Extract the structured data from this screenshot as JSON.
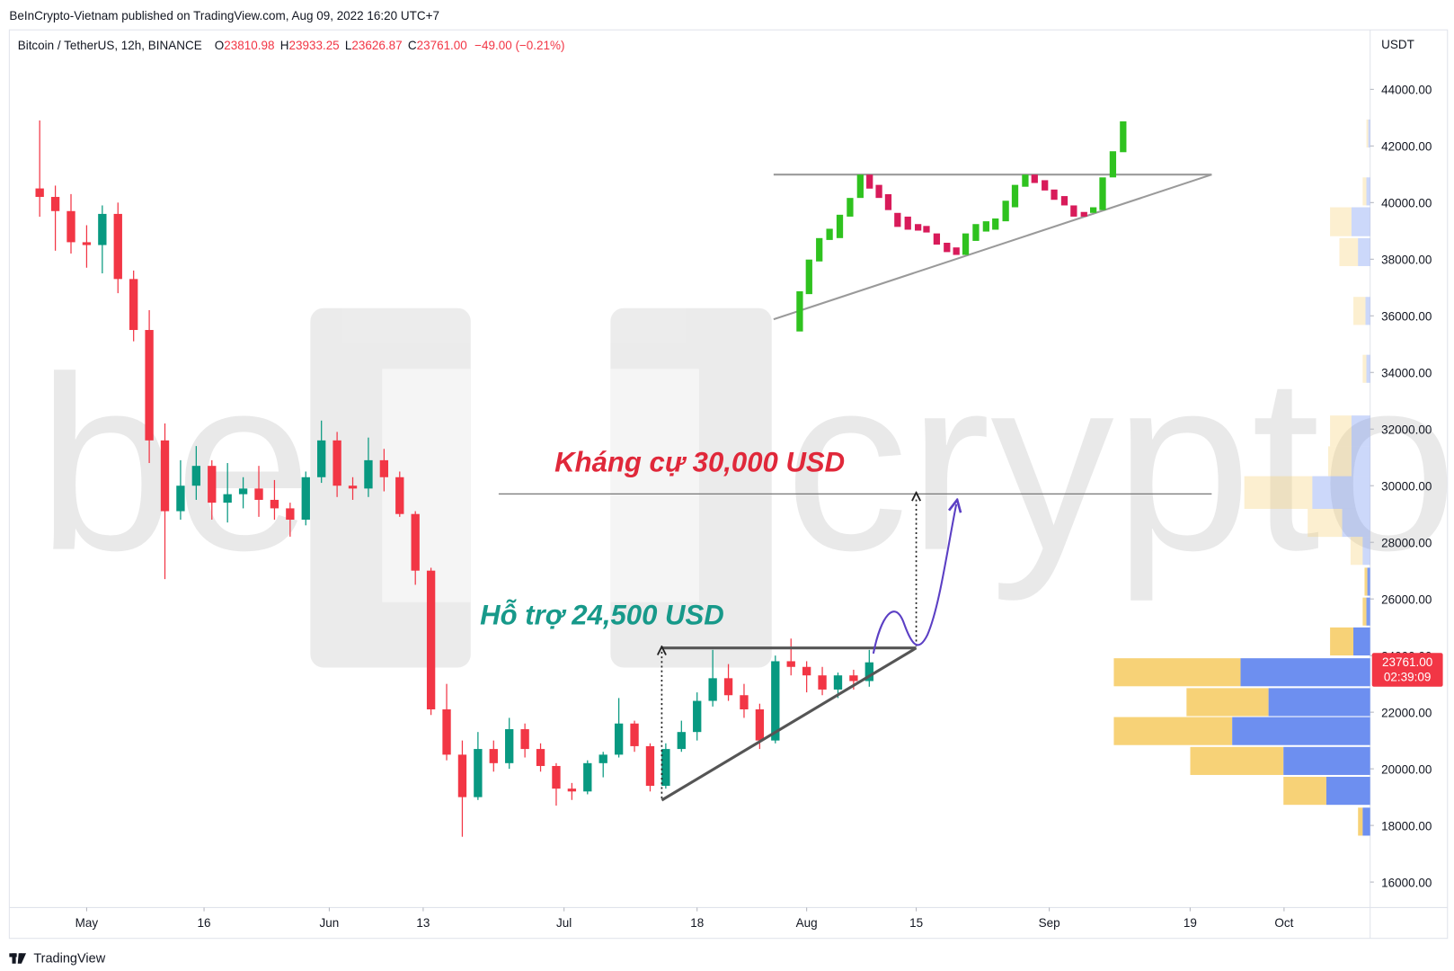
{
  "header": "BeInCrypto-Vietnam published on TradingView.com, Aug 09, 2022 16:20 UTC+7",
  "legend": {
    "symbol": "Bitcoin / TetherUS, 12h, BINANCE",
    "ohlc": [
      {
        "label": "O",
        "value": "23810.98"
      },
      {
        "label": "H",
        "value": "23933.25"
      },
      {
        "label": "L",
        "value": "23626.87"
      },
      {
        "label": "C",
        "value": "23761.00"
      }
    ],
    "change": "−49.00 (−0.21%)"
  },
  "price_tag": {
    "price": "23761.00",
    "countdown": "02:39:09"
  },
  "watermark": {
    "left": "be",
    "right": "crypto"
  },
  "footer": "TradingView",
  "chart_data": {
    "type": "candlestick",
    "y_axis_label": "USDT",
    "up_color": "#089981",
    "down_color": "#f23645",
    "xlim": [
      "04-21",
      "10-12"
    ],
    "ylim": [
      15100,
      46100
    ],
    "xticks": [
      {
        "value": "05-01",
        "label": "May"
      },
      {
        "value": "05-16",
        "label": "16"
      },
      {
        "value": "06-01",
        "label": "Jun"
      },
      {
        "value": "06-13",
        "label": "13"
      },
      {
        "value": "07-01",
        "label": "Jul"
      },
      {
        "value": "07-18",
        "label": "18"
      },
      {
        "value": "08-01",
        "label": "Aug"
      },
      {
        "value": "08-15",
        "label": "15"
      },
      {
        "value": "09-01",
        "label": "Sep"
      },
      {
        "value": "09-19",
        "label": "19"
      },
      {
        "value": "10-01",
        "label": "Oct"
      }
    ],
    "yticks": [
      {
        "value": 16000,
        "label": "16000.00"
      },
      {
        "value": 18000,
        "label": "18000.00"
      },
      {
        "value": 20000,
        "label": "20000.00"
      },
      {
        "value": 22000,
        "label": "22000.00"
      },
      {
        "value": 24000,
        "label": "24000.00"
      },
      {
        "value": 26000,
        "label": "26000.00"
      },
      {
        "value": 28000,
        "label": "28000.00"
      },
      {
        "value": 30000,
        "label": "30000.00"
      },
      {
        "value": 32000,
        "label": "32000.00"
      },
      {
        "value": 34000,
        "label": "34000.00"
      },
      {
        "value": 36000,
        "label": "36000.00"
      },
      {
        "value": 38000,
        "label": "38000.00"
      },
      {
        "value": 40000,
        "label": "40000.00"
      },
      {
        "value": 42000,
        "label": "42000.00"
      },
      {
        "value": 44000,
        "label": "44000.00"
      }
    ],
    "annotations": [
      {
        "text": "Kháng cự 30,000 USD",
        "color": "#e0283a"
      },
      {
        "text": "Hỗ trợ 24,500 USD",
        "color": "#17998a"
      }
    ],
    "x": [
      "04-25",
      "04-27",
      "04-29",
      "05-01",
      "05-03",
      "05-05",
      "05-07",
      "05-09",
      "05-11",
      "05-13",
      "05-15",
      "05-17",
      "05-19",
      "05-21",
      "05-23",
      "05-25",
      "05-27",
      "05-29",
      "05-31",
      "06-02",
      "06-04",
      "06-06",
      "06-08",
      "06-10",
      "06-12",
      "06-14",
      "06-16",
      "06-18",
      "06-20",
      "06-22",
      "06-24",
      "06-26",
      "06-28",
      "06-30",
      "07-02",
      "07-04",
      "07-06",
      "07-08",
      "07-10",
      "07-12",
      "07-14",
      "07-16",
      "07-18",
      "07-20",
      "07-22",
      "07-24",
      "07-26",
      "07-28",
      "07-30",
      "08-01",
      "08-03",
      "08-05",
      "08-07",
      "08-09"
    ],
    "open": [
      40500,
      40200,
      39700,
      38600,
      38500,
      39600,
      37300,
      35500,
      31600,
      29100,
      30000,
      30700,
      29400,
      29700,
      29900,
      29500,
      29200,
      28800,
      30300,
      31600,
      30000,
      29900,
      30900,
      30300,
      29000,
      27000,
      22100,
      20500,
      19000,
      20700,
      20200,
      21400,
      20700,
      20100,
      19300,
      19200,
      20200,
      20500,
      21600,
      20800,
      19400,
      20700,
      21300,
      22400,
      23200,
      22600,
      22100,
      21000,
      23800,
      23600,
      23300,
      22800,
      23300,
      23100
    ],
    "high": [
      42900,
      40600,
      40300,
      39200,
      39900,
      40000,
      37600,
      36200,
      32200,
      30900,
      31400,
      30900,
      30800,
      30300,
      30700,
      30200,
      29400,
      30500,
      32300,
      31900,
      30300,
      31700,
      31300,
      30500,
      29100,
      27100,
      23000,
      21000,
      21300,
      21000,
      21800,
      21600,
      20900,
      20200,
      19500,
      20300,
      20600,
      22500,
      21700,
      20900,
      20900,
      21700,
      22700,
      24200,
      23700,
      23000,
      22300,
      24000,
      24600,
      23800,
      23600,
      23400,
      23500,
      24200
    ],
    "low": [
      39500,
      38300,
      38200,
      37700,
      37500,
      36800,
      35100,
      30800,
      26700,
      28800,
      29500,
      28800,
      28700,
      29200,
      28900,
      28800,
      28200,
      28600,
      30100,
      29600,
      29500,
      29600,
      29800,
      28900,
      26500,
      21900,
      20300,
      17600,
      18900,
      19900,
      20000,
      20400,
      19900,
      18700,
      18900,
      19100,
      19700,
      20400,
      20600,
      19200,
      19300,
      20600,
      21000,
      22200,
      22400,
      21800,
      20700,
      20900,
      23300,
      22700,
      22600,
      22500,
      22800,
      22900
    ],
    "close": [
      40200,
      39700,
      38600,
      38500,
      39600,
      37300,
      35500,
      31600,
      29100,
      30000,
      30700,
      29400,
      29700,
      29900,
      29500,
      29200,
      28800,
      30300,
      31600,
      30000,
      29900,
      30900,
      30300,
      29000,
      27000,
      22100,
      20500,
      19000,
      20700,
      20200,
      21400,
      20700,
      20100,
      19300,
      19200,
      20200,
      20500,
      21600,
      20800,
      19400,
      20700,
      21300,
      22400,
      23200,
      22600,
      22100,
      21000,
      23800,
      23600,
      23300,
      22800,
      23300,
      23100,
      23761
    ]
  }
}
